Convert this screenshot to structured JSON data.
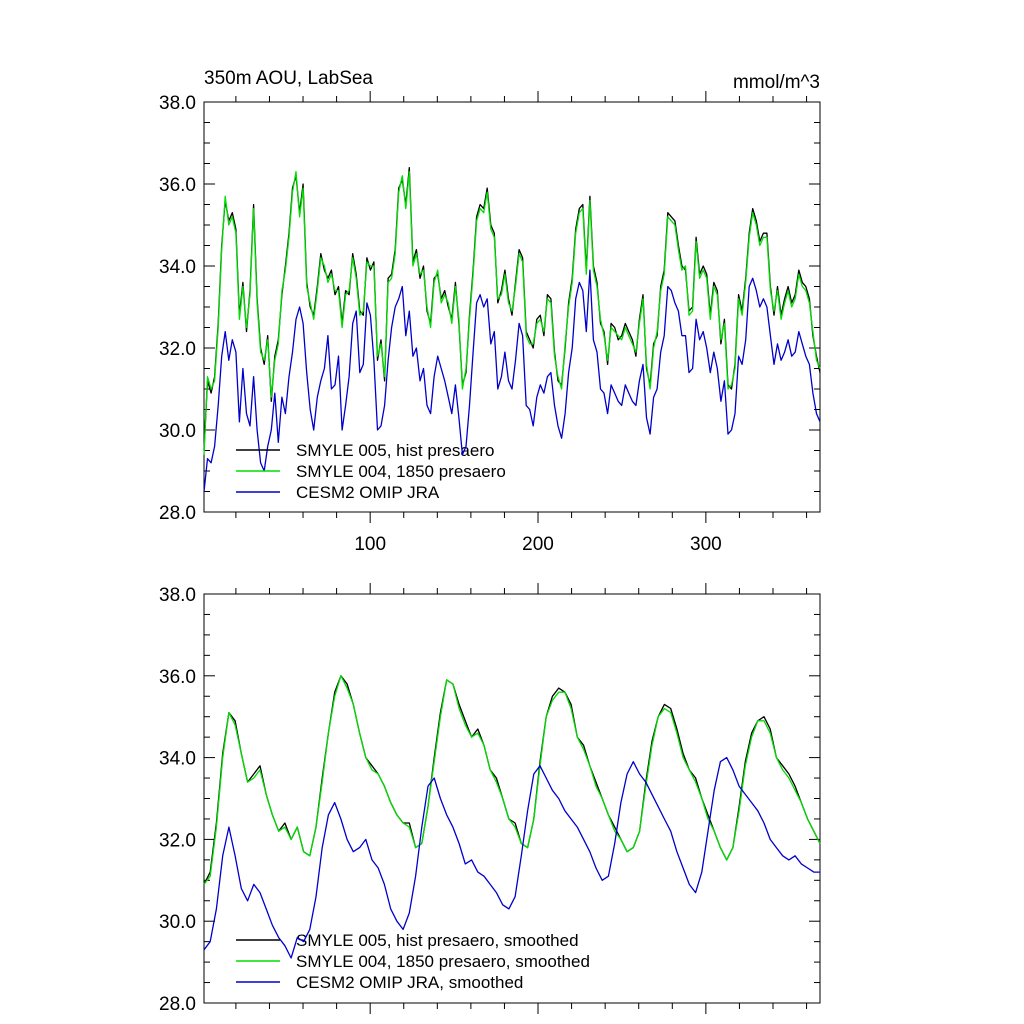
{
  "chart_data": [
    {
      "type": "line",
      "title": "350m AOU, LabSea",
      "units": "mmol/m^3",
      "xlim": [
        1,
        368
      ],
      "ylim": [
        28,
        38
      ],
      "yticks": [
        "28.0",
        "30.0",
        "32.0",
        "34.0",
        "36.0",
        "38.0"
      ],
      "xticks": [
        "100",
        "200",
        "300"
      ],
      "legend_position": "lower-left",
      "series": [
        {
          "name": "SMYLE 005, hist presaero",
          "color": "#000000",
          "y": [
            29.5,
            31.2,
            30.9,
            31.3,
            32.6,
            34.5,
            35.6,
            35.1,
            35.3,
            34.9,
            32.8,
            33.6,
            32.4,
            33.4,
            35.5,
            33.2,
            32.0,
            31.6,
            32.3,
            30.7,
            31.8,
            32.2,
            33.3,
            34.0,
            34.8,
            35.9,
            36.2,
            35.3,
            36.0,
            33.6,
            33.0,
            32.8,
            33.5,
            34.3,
            33.9,
            33.7,
            33.9,
            33.3,
            33.5,
            32.6,
            33.4,
            33.3,
            34.3,
            33.8,
            32.9,
            32.8,
            34.2,
            33.9,
            34.1,
            31.7,
            32.2,
            31.2,
            33.7,
            33.8,
            34.4,
            35.9,
            36.1,
            35.5,
            36.4,
            34.1,
            34.4,
            33.7,
            34.0,
            32.9,
            32.6,
            33.7,
            33.8,
            33.2,
            33.4,
            33.0,
            32.7,
            33.6,
            32.6,
            31.1,
            31.4,
            32.8,
            33.9,
            35.2,
            35.5,
            35.4,
            35.9,
            35.0,
            34.8,
            33.1,
            33.4,
            33.9,
            33.2,
            32.8,
            33.6,
            34.4,
            34.2,
            32.4,
            32.2,
            32.0,
            32.7,
            32.8,
            32.3,
            33.3,
            33.2,
            31.9,
            31.2,
            31.1,
            32.0,
            33.1,
            33.7,
            34.9,
            35.4,
            35.5,
            33.9,
            35.7,
            34.0,
            33.6,
            32.6,
            32.4,
            31.6,
            32.6,
            32.5,
            32.2,
            32.3,
            32.6,
            32.4,
            32.2,
            31.8,
            32.7,
            33.3,
            31.5,
            31.1,
            32.1,
            32.3,
            33.5,
            33.9,
            35.3,
            35.2,
            35.1,
            34.5,
            34.0,
            33.9,
            32.9,
            33.0,
            34.7,
            33.8,
            34.0,
            33.8,
            32.8,
            33.6,
            33.4,
            32.1,
            32.7,
            31.1,
            31.0,
            31.6,
            33.3,
            32.9,
            33.7,
            34.8,
            35.4,
            35.1,
            34.6,
            34.8,
            34.8,
            33.5,
            32.8,
            33.5,
            32.8,
            33.2,
            33.5,
            33.1,
            33.3,
            33.9,
            33.6,
            33.5,
            33.2,
            32.3,
            31.8,
            31.4
          ]
        },
        {
          "name": "SMYLE 004, 1850 presaero",
          "color": "#00dd00",
          "y": [
            29.4,
            31.3,
            31.0,
            31.2,
            32.5,
            34.4,
            35.7,
            35.0,
            35.2,
            34.8,
            32.7,
            33.5,
            32.5,
            33.3,
            35.4,
            33.1,
            31.9,
            31.7,
            32.2,
            30.8,
            31.7,
            32.1,
            33.4,
            33.9,
            34.7,
            35.8,
            36.3,
            35.2,
            35.9,
            33.5,
            33.1,
            32.7,
            33.4,
            34.2,
            34.0,
            33.6,
            33.8,
            33.4,
            33.4,
            32.5,
            33.3,
            33.4,
            34.2,
            33.7,
            32.8,
            32.9,
            34.1,
            34.0,
            34.0,
            31.8,
            32.1,
            31.3,
            33.6,
            33.7,
            34.3,
            35.8,
            36.2,
            35.4,
            36.3,
            34.0,
            34.3,
            33.8,
            33.9,
            33.0,
            32.5,
            33.6,
            33.9,
            33.1,
            33.3,
            33.1,
            32.6,
            33.5,
            32.7,
            31.0,
            31.5,
            32.7,
            33.8,
            35.1,
            35.4,
            35.3,
            35.8,
            34.9,
            34.7,
            33.2,
            33.3,
            33.8,
            33.1,
            32.9,
            33.5,
            34.3,
            34.1,
            32.3,
            32.1,
            32.1,
            32.6,
            32.7,
            32.4,
            33.2,
            33.1,
            31.8,
            31.3,
            31.0,
            32.1,
            33.0,
            33.6,
            34.8,
            35.3,
            35.4,
            33.8,
            35.6,
            33.9,
            33.5,
            32.7,
            32.3,
            31.7,
            32.5,
            32.4,
            32.3,
            32.2,
            32.5,
            32.3,
            32.1,
            31.9,
            32.6,
            33.2,
            31.6,
            31.0,
            32.0,
            32.4,
            33.4,
            33.8,
            35.2,
            35.1,
            35.0,
            34.4,
            33.9,
            34.0,
            32.8,
            32.9,
            34.6,
            33.7,
            33.9,
            33.7,
            32.7,
            33.5,
            33.3,
            32.2,
            32.6,
            31.0,
            31.1,
            31.5,
            33.2,
            32.8,
            33.6,
            34.7,
            35.3,
            35.0,
            34.5,
            34.7,
            34.7,
            33.4,
            32.9,
            33.4,
            32.7,
            33.1,
            33.4,
            33.0,
            33.2,
            33.8,
            33.5,
            33.4,
            33.1,
            32.4,
            31.7,
            31.5
          ]
        },
        {
          "name": "CESM2 OMIP JRA",
          "color": "#0000cc",
          "y": [
            28.5,
            29.3,
            29.2,
            29.6,
            30.6,
            31.8,
            32.4,
            31.7,
            32.2,
            31.9,
            30.2,
            31.5,
            30.4,
            30.1,
            31.3,
            30.0,
            29.2,
            29.0,
            29.6,
            30.0,
            30.9,
            29.7,
            30.8,
            30.4,
            31.3,
            31.9,
            32.7,
            33.0,
            32.6,
            31.4,
            30.5,
            30.0,
            30.8,
            31.2,
            31.5,
            32.3,
            31.0,
            31.1,
            31.8,
            30.0,
            30.6,
            31.3,
            32.6,
            32.9,
            31.4,
            31.6,
            33.1,
            32.8,
            31.7,
            30.0,
            30.1,
            30.6,
            31.7,
            32.5,
            33.0,
            33.2,
            33.5,
            32.3,
            32.9,
            31.8,
            32.0,
            31.2,
            31.5,
            30.6,
            30.4,
            31.3,
            31.8,
            31.5,
            31.2,
            30.8,
            30.4,
            31.1,
            30.3,
            29.4,
            29.6,
            30.6,
            31.9,
            33.1,
            33.3,
            33.0,
            33.2,
            32.1,
            32.4,
            31.0,
            31.3,
            31.9,
            31.2,
            31.0,
            31.7,
            32.6,
            32.3,
            30.6,
            30.5,
            30.1,
            30.8,
            31.1,
            30.9,
            31.3,
            31.4,
            30.6,
            30.1,
            29.8,
            30.4,
            31.4,
            32.0,
            33.2,
            33.6,
            33.4,
            32.4,
            33.9,
            32.2,
            31.9,
            31.0,
            30.9,
            30.4,
            31.1,
            30.9,
            30.7,
            30.6,
            31.1,
            30.9,
            30.7,
            30.6,
            31.2,
            31.6,
            30.3,
            29.9,
            30.8,
            31.0,
            31.9,
            32.3,
            33.5,
            33.4,
            33.1,
            32.9,
            32.3,
            32.3,
            31.4,
            31.5,
            32.7,
            32.2,
            32.4,
            32.0,
            31.4,
            31.9,
            31.5,
            30.7,
            31.2,
            29.9,
            30.0,
            30.4,
            31.8,
            31.6,
            32.2,
            33.5,
            33.7,
            33.4,
            33.0,
            33.2,
            33.0,
            32.3,
            31.6,
            32.1,
            31.7,
            31.9,
            32.2,
            31.8,
            31.9,
            32.4,
            32.1,
            31.8,
            31.6,
            30.9,
            30.4,
            30.2
          ]
        }
      ]
    },
    {
      "type": "line",
      "xlim": [
        1,
        368
      ],
      "ylim": [
        28,
        38
      ],
      "yticks": [
        "28.0",
        "30.0",
        "32.0",
        "34.0",
        "36.0",
        "38.0"
      ],
      "legend_position": "lower-left",
      "series": [
        {
          "name": "SMYLE 005, hist presaero, smoothed",
          "color": "#000000",
          "y": [
            30.9,
            31.2,
            32.4,
            34.1,
            35.1,
            34.9,
            34.1,
            33.4,
            33.6,
            33.8,
            33.1,
            32.6,
            32.2,
            32.4,
            32.0,
            32.3,
            31.7,
            31.6,
            32.3,
            33.5,
            34.6,
            35.6,
            36.0,
            35.8,
            35.3,
            34.6,
            34.0,
            33.8,
            33.6,
            33.3,
            32.9,
            32.6,
            32.4,
            32.4,
            31.8,
            31.9,
            32.8,
            34.0,
            35.1,
            35.9,
            35.8,
            35.3,
            34.9,
            34.5,
            34.7,
            34.3,
            33.7,
            33.5,
            33.0,
            32.5,
            32.4,
            31.9,
            31.8,
            32.5,
            33.9,
            35.0,
            35.5,
            35.7,
            35.6,
            35.3,
            34.5,
            34.3,
            33.8,
            33.4,
            33.0,
            32.6,
            32.3,
            32.0,
            31.7,
            31.8,
            32.2,
            33.4,
            34.4,
            35.0,
            35.3,
            35.2,
            34.7,
            34.1,
            33.7,
            33.5,
            33.0,
            32.6,
            32.2,
            31.8,
            31.5,
            31.8,
            32.8,
            33.9,
            34.6,
            34.9,
            35.0,
            34.7,
            34.0,
            33.8,
            33.6,
            33.3,
            32.9,
            32.5,
            32.2,
            31.9
          ]
        },
        {
          "name": "SMYLE 004, 1850 presaero, smoothed",
          "color": "#00dd00",
          "y": [
            30.9,
            31.1,
            32.3,
            34.0,
            35.1,
            34.8,
            34.1,
            33.4,
            33.5,
            33.7,
            33.1,
            32.6,
            32.2,
            32.3,
            32.0,
            32.3,
            31.7,
            31.6,
            32.3,
            33.4,
            34.6,
            35.5,
            36.0,
            35.7,
            35.3,
            34.6,
            34.0,
            33.7,
            33.6,
            33.3,
            32.9,
            32.6,
            32.4,
            32.3,
            31.8,
            31.9,
            32.8,
            33.9,
            35.0,
            35.9,
            35.8,
            35.2,
            34.8,
            34.5,
            34.6,
            34.3,
            33.7,
            33.4,
            33.0,
            32.5,
            32.3,
            31.9,
            31.8,
            32.5,
            33.8,
            35.0,
            35.4,
            35.6,
            35.6,
            35.2,
            34.5,
            34.2,
            33.8,
            33.3,
            33.0,
            32.6,
            32.2,
            32.0,
            31.7,
            31.8,
            32.2,
            33.3,
            34.3,
            35.0,
            35.2,
            35.1,
            34.6,
            34.0,
            33.7,
            33.4,
            33.0,
            32.5,
            32.2,
            31.8,
            31.5,
            31.8,
            32.7,
            33.8,
            34.5,
            34.9,
            34.9,
            34.6,
            34.0,
            33.7,
            33.5,
            33.2,
            32.9,
            32.5,
            32.2,
            31.9
          ]
        },
        {
          "name": "CESM2 OMIP JRA, smoothed",
          "color": "#0000cc",
          "y": [
            29.3,
            29.5,
            30.3,
            31.6,
            32.3,
            31.6,
            30.8,
            30.5,
            30.9,
            30.7,
            30.3,
            29.9,
            29.6,
            29.4,
            29.1,
            29.6,
            29.5,
            29.8,
            30.6,
            31.8,
            32.6,
            32.9,
            32.5,
            32.0,
            31.7,
            31.8,
            32.0,
            31.5,
            31.3,
            30.9,
            30.3,
            30.0,
            29.8,
            30.2,
            31.1,
            32.3,
            33.3,
            33.5,
            33.0,
            32.6,
            32.3,
            31.9,
            31.4,
            31.5,
            31.2,
            31.1,
            30.9,
            30.7,
            30.4,
            30.3,
            30.6,
            31.6,
            32.7,
            33.6,
            33.8,
            33.5,
            33.2,
            33.0,
            32.7,
            32.5,
            32.3,
            32.0,
            31.7,
            31.3,
            31.0,
            31.1,
            31.9,
            32.9,
            33.6,
            33.9,
            33.6,
            33.4,
            33.1,
            32.8,
            32.5,
            32.2,
            31.7,
            31.3,
            30.9,
            30.7,
            31.2,
            32.2,
            33.2,
            33.9,
            34.0,
            33.7,
            33.3,
            33.1,
            32.9,
            32.7,
            32.4,
            32.0,
            31.8,
            31.6,
            31.5,
            31.6,
            31.4,
            31.3,
            31.2,
            31.2
          ]
        }
      ]
    }
  ]
}
